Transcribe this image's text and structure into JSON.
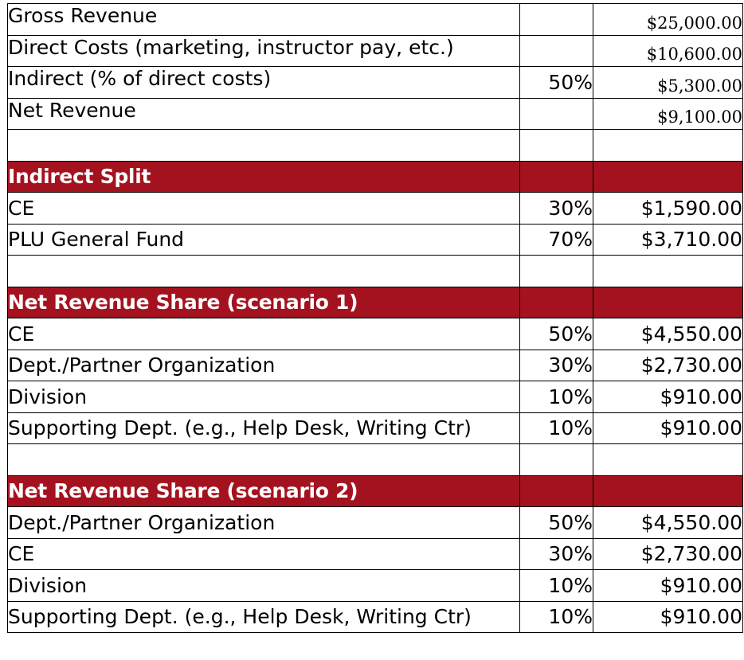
{
  "colors": {
    "header_bg": "#a5121f",
    "header_text": "#ffffff",
    "border": "#000000"
  },
  "summary": [
    {
      "label": "Gross Revenue",
      "pct": "",
      "amount": "$25,000.00"
    },
    {
      "label": "Direct Costs (marketing, instructor pay, etc.)",
      "pct": "",
      "amount": "$10,600.00"
    },
    {
      "label": "Indirect (% of direct costs)",
      "pct": "50%",
      "amount": "$5,300.00"
    },
    {
      "label": "Net Revenue",
      "pct": "",
      "amount": "$9,100.00"
    }
  ],
  "indirect_split": {
    "title": "Indirect Split",
    "rows": [
      {
        "label": "CE",
        "pct": "30%",
        "amount": "$1,590.00"
      },
      {
        "label": "PLU General Fund",
        "pct": "70%",
        "amount": "$3,710.00"
      }
    ]
  },
  "scenario1": {
    "title": "Net Revenue Share (scenario 1)",
    "rows": [
      {
        "label": "CE",
        "pct": "50%",
        "amount": "$4,550.00"
      },
      {
        "label": "Dept./Partner Organization",
        "pct": "30%",
        "amount": "$2,730.00"
      },
      {
        "label": "Division",
        "pct": "10%",
        "amount": "$910.00"
      },
      {
        "label": "Supporting Dept. (e.g., Help Desk, Writing Ctr)",
        "pct": "10%",
        "amount": "$910.00"
      }
    ]
  },
  "scenario2": {
    "title": "Net Revenue Share (scenario 2)",
    "rows": [
      {
        "label": "Dept./Partner Organization",
        "pct": "50%",
        "amount": "$4,550.00"
      },
      {
        "label": "CE",
        "pct": "30%",
        "amount": "$2,730.00"
      },
      {
        "label": "Division",
        "pct": "10%",
        "amount": "$910.00"
      },
      {
        "label": "Supporting Dept. (e.g., Help Desk, Writing Ctr)",
        "pct": "10%",
        "amount": "$910.00"
      }
    ]
  }
}
